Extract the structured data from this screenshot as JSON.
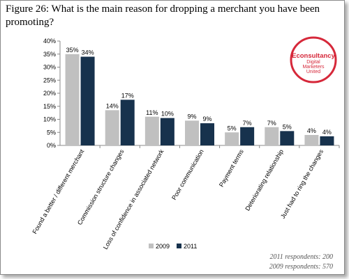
{
  "figure": {
    "title": "Figure 26: What is the main reason for dropping a merchant you have been promoting?",
    "footnotes": [
      "2011 respondents: 200",
      "2009 respondents: 570"
    ]
  },
  "logo": {
    "name": "Econsultancy",
    "tagline_lines": [
      "Digital",
      "Marketers",
      "United"
    ],
    "colors": {
      "ring": "#d6283a",
      "text": "#d6283a"
    }
  },
  "chart_data": {
    "type": "bar",
    "categories": [
      "Found a better / different merchant",
      "Commission structure changes",
      "Loss of confidence in associated network",
      "Poor communication",
      "Payment terms",
      "Deteriorating relationship",
      "Just had to ring the changes"
    ],
    "series": [
      {
        "name": "2009",
        "values": [
          35,
          13.5,
          11,
          9.5,
          5,
          7,
          4
        ],
        "labels": [
          "35%",
          "14%",
          "11%",
          "9%",
          "5%",
          "7%",
          "4%"
        ],
        "color": "#c0c0c0"
      },
      {
        "name": "2011",
        "values": [
          34,
          17.5,
          10.5,
          8.5,
          7,
          5.5,
          3.5
        ],
        "labels": [
          "34%",
          "17%",
          "10%",
          "9%",
          "7%",
          "5%",
          "4%"
        ],
        "color": "#17324d"
      }
    ],
    "ylim": [
      0,
      40
    ],
    "yticks": [
      "0%",
      "5%",
      "10%",
      "15%",
      "20%",
      "25%",
      "30%",
      "35%",
      "40%"
    ],
    "ytick_values": [
      0,
      5,
      10,
      15,
      20,
      25,
      30,
      35,
      40
    ],
    "grid": false,
    "legend_position": "bottom-center"
  }
}
